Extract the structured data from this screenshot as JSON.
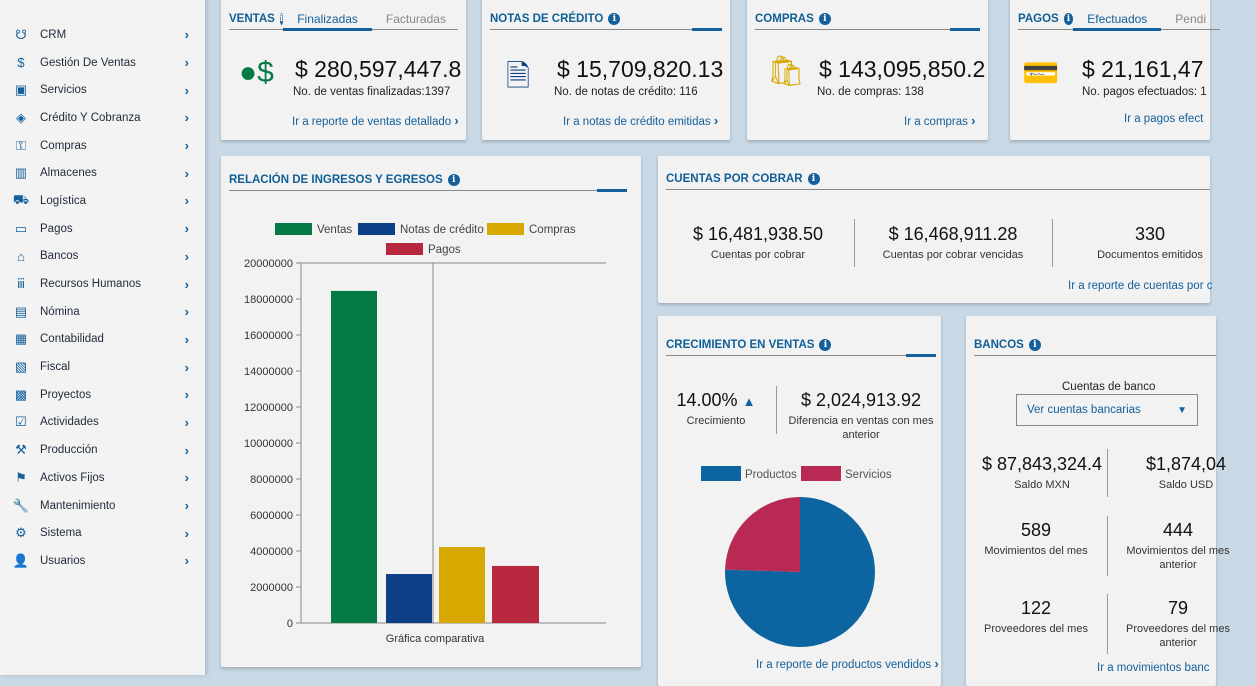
{
  "sidebar": {
    "items": [
      {
        "label": "CRM",
        "icon": "crm-icon"
      },
      {
        "label": "Gestión De Ventas",
        "icon": "sales-icon"
      },
      {
        "label": "Servicios",
        "icon": "services-icon"
      },
      {
        "label": "Crédito Y Cobranza",
        "icon": "credit-icon"
      },
      {
        "label": "Compras",
        "icon": "purchases-icon"
      },
      {
        "label": "Almacenes",
        "icon": "warehouse-icon"
      },
      {
        "label": "Logística",
        "icon": "truck-icon"
      },
      {
        "label": "Pagos",
        "icon": "payment-icon"
      },
      {
        "label": "Bancos",
        "icon": "bank-icon"
      },
      {
        "label": "Recursos Humanos",
        "icon": "people-icon"
      },
      {
        "label": "Nómina",
        "icon": "payroll-icon"
      },
      {
        "label": "Contabilidad",
        "icon": "calculator-icon"
      },
      {
        "label": "Fiscal",
        "icon": "fiscal-icon"
      },
      {
        "label": "Proyectos",
        "icon": "projects-icon"
      },
      {
        "label": "Actividades",
        "icon": "checkbox-icon"
      },
      {
        "label": "Producción",
        "icon": "factory-icon"
      },
      {
        "label": "Activos Fijos",
        "icon": "assets-icon"
      },
      {
        "label": "Mantenimiento",
        "icon": "wrench-icon"
      },
      {
        "label": "Sistema",
        "icon": "system-icon"
      },
      {
        "label": "Usuarios",
        "icon": "user-icon"
      }
    ]
  },
  "ventas": {
    "title": "VENTAS",
    "tabs": [
      "Finalizadas",
      "Facturadas"
    ],
    "amount": "$ 280,597,447.8",
    "sub": "No. de ventas finalizadas:1397",
    "link": "Ir a reporte de ventas detallado"
  },
  "notas": {
    "title": "NOTAS DE CRÉDITO",
    "amount": "$ 15,709,820.13",
    "sub": "No. de notas de crédito: 116",
    "link": "Ir a notas de crédito emitidas"
  },
  "compras": {
    "title": "COMPRAS",
    "amount": "$ 143,095,850.2",
    "sub": "No. de compras: 138",
    "link": "Ir a compras"
  },
  "pagos": {
    "title": "PAGOS",
    "tabs": [
      "Efectuados",
      "Pendi"
    ],
    "amount": "$ 21,161,47",
    "sub": "No. pagos efectuados: 1",
    "link": "Ir a pagos efect"
  },
  "relacion": {
    "title": "RELACIÓN DE INGRESOS Y EGRESOS"
  },
  "chart_data": [
    {
      "type": "bar",
      "categories": [
        "Ventas",
        "Notas de  crédito",
        "Compras",
        "Pagos"
      ],
      "values": [
        18450000,
        2720000,
        4220000,
        3170000
      ],
      "colors": [
        "#067a45",
        "#0d3f86",
        "#d7a900",
        "#b7283f"
      ],
      "xlabel": "Gráfica comparativa",
      "ylim": [
        0,
        20000000
      ],
      "yticks": [
        0,
        2000000,
        4000000,
        6000000,
        8000000,
        10000000,
        12000000,
        14000000,
        16000000,
        18000000,
        20000000
      ],
      "legend": "top",
      "grid": true
    },
    {
      "type": "pie",
      "categories": [
        "Productos",
        "Servicios"
      ],
      "values": [
        75.5,
        24.5
      ],
      "colors": [
        "#0c64a0",
        "#b82a53"
      ],
      "legend": "top"
    }
  ],
  "cuentas": {
    "title": "CUENTAS POR COBRAR",
    "stats": [
      {
        "v": "$ 16,481,938.50",
        "l": "Cuentas por cobrar"
      },
      {
        "v": "$ 16,468,911.28",
        "l": "Cuentas por cobrar vencidas"
      },
      {
        "v": "330",
        "l": "Documentos emitidos"
      }
    ],
    "link": "Ir a reporte de cuentas por c"
  },
  "crecimiento": {
    "title": "CRECIMIENTO EN VENTAS",
    "pct": "14.00%",
    "pct_label": "Crecimiento",
    "diff": "$ 2,024,913.92",
    "diff_label": "Diferencia en ventas con mes anterior",
    "link": "Ir a reporte de productos vendidos"
  },
  "bancos": {
    "title": "BANCOS",
    "select_label": "Cuentas de banco",
    "select_value": "Ver cuentas bancarias",
    "stats": [
      {
        "v": "$ 87,843,324.4",
        "l": "Saldo MXN"
      },
      {
        "v": "$1,874,04",
        "l": "Saldo USD"
      },
      {
        "v": "589",
        "l": "Movimientos del mes"
      },
      {
        "v": "444",
        "l": "Movimientos del mes anterior"
      },
      {
        "v": "122",
        "l": "Proveedores del mes"
      },
      {
        "v": "79",
        "l": "Proveedores del mes anterior"
      }
    ],
    "link": "Ir a movimientos banc"
  }
}
